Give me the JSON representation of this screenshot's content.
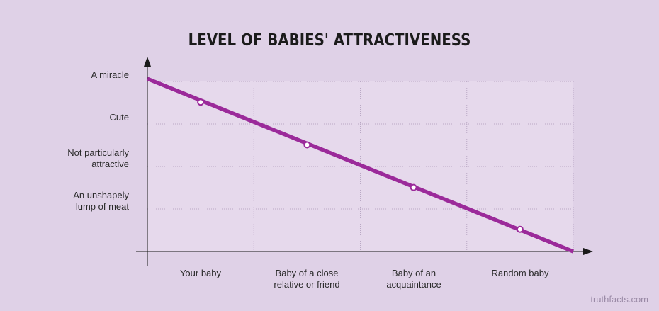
{
  "chart_data": {
    "type": "line",
    "title": "LEVEL OF BABIES' ATTRACTIVENESS",
    "xlabel": "",
    "ylabel": "",
    "categories": [
      "Your baby",
      "Baby of a close relative or friend",
      "Baby of an acquaintance",
      "Random baby"
    ],
    "category_lines": [
      [
        "Your baby"
      ],
      [
        "Baby of a close",
        "relative or friend"
      ],
      [
        "Baby of an",
        "acquaintance"
      ],
      [
        "Random baby"
      ]
    ],
    "y_levels": [
      {
        "lines": [
          "An unshapely",
          "lump of meat"
        ],
        "value": 1
      },
      {
        "lines": [
          "Not particularly",
          "attractive"
        ],
        "value": 2
      },
      {
        "lines": [
          "Cute"
        ],
        "value": 3
      },
      {
        "lines": [
          "A miracle"
        ],
        "value": 4
      }
    ],
    "ylim": [
      0,
      4.7
    ],
    "series": [
      {
        "values": [
          3.5,
          2.5,
          1.5,
          0.52
        ]
      }
    ],
    "line_start": 4.05,
    "line_end": 0,
    "grid": true,
    "colors": {
      "line": "#9b2a9a",
      "plot_bg": "#e6d9ec",
      "grid": "#b9a8c4",
      "axis": "#1a1a1a"
    }
  },
  "watermark": "truthfacts.com"
}
